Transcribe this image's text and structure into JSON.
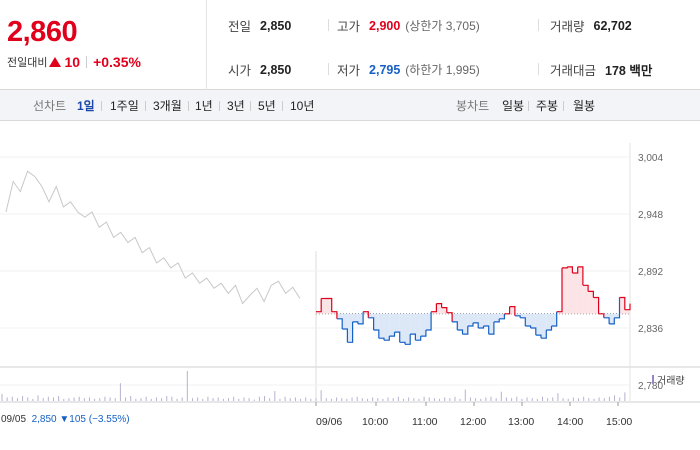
{
  "quote": {
    "price": "2,860",
    "change_label": "전일대비",
    "change_value": "10",
    "change_pct": "+0.35%"
  },
  "info": {
    "prev_close_label": "전일",
    "prev_close": "2,850",
    "open_label": "시가",
    "open": "2,850",
    "high_label": "고가",
    "high": "2,900",
    "upper_limit": "(상한가 3,705)",
    "low_label": "저가",
    "low": "2,795",
    "lower_limit": "(하한가 1,995)",
    "volume_label": "거래량",
    "volume": "62,702",
    "amount_label": "거래대금",
    "amount": "178 백만"
  },
  "tabs": {
    "line_label": "선차트",
    "line_items": [
      "1일",
      "1주일",
      "3개월",
      "1년",
      "3년",
      "5년",
      "10년"
    ],
    "active": "1일",
    "candle_label": "봉차트",
    "candle_items": [
      "일봉",
      "주봉",
      "월봉"
    ]
  },
  "chart_labels": {
    "prev_day": "09/05",
    "prev_price": "2,850",
    "prev_change": "▼105 (−3.55%)",
    "volume_legend": "거래량"
  },
  "colors": {
    "up": "#e0001b",
    "down": "#1560c6",
    "prev_line": "#c8c8c8",
    "fill_down": "#dce8f7",
    "fill_up": "#fbe3e6"
  },
  "chart_data": {
    "type": "line",
    "y_ticks": [
      "3,004",
      "2,948",
      "2,892",
      "2,836",
      "2,780"
    ],
    "y_tick_values": [
      3004,
      2948,
      2892,
      2836,
      2780
    ],
    "ylim": [
      2780,
      3004
    ],
    "baseline": 2850,
    "x_ticks": [
      "09/05",
      "09/06",
      "10:00",
      "11:00",
      "12:00",
      "13:00",
      "14:00",
      "15:00"
    ],
    "series": [
      {
        "values": [
          2950,
          2980,
          2970,
          2990,
          2985,
          2975,
          2960,
          2975,
          2955,
          2960,
          2950,
          2945,
          2950,
          2935,
          2940,
          2925,
          2930,
          2920,
          2925,
          2910,
          2915,
          2900,
          2905,
          2895,
          2900,
          2885,
          2890,
          2880,
          2885,
          2875,
          2880,
          2870,
          2878,
          2860,
          2868,
          2875,
          2862,
          2878,
          2882,
          2870,
          2876,
          2865
        ]
      },
      {
        "values": [
          2852,
          2865,
          2865,
          2852,
          2845,
          2835,
          2822,
          2842,
          2840,
          2852,
          2846,
          2834,
          2826,
          2824,
          2828,
          2832,
          2822,
          2820,
          2830,
          2824,
          2828,
          2834,
          2852,
          2860,
          2856,
          2851,
          2842,
          2834,
          2830,
          2838,
          2841,
          2836,
          2838,
          2830,
          2842,
          2845,
          2850,
          2857,
          2848,
          2846,
          2838,
          2836,
          2829,
          2826,
          2834,
          2838,
          2852,
          2895,
          2896,
          2890,
          2896,
          2878,
          2872,
          2866,
          2850,
          2846,
          2840,
          2846,
          2866,
          2854,
          2860
        ]
      }
    ],
    "volume": [
      1,
      0.5,
      0.6,
      0.4,
      0.7,
      0.5,
      0.3,
      0.8,
      0.4,
      0.6,
      0.5,
      0.7,
      0.3,
      0.4,
      0.5,
      0.6,
      0.4,
      0.5,
      0.3,
      0.4,
      0.6,
      0.5,
      0.4,
      2.5,
      0.5,
      0.7,
      0.3,
      0.4,
      0.6,
      0.3,
      0.5,
      0.4,
      0.7,
      0.6,
      0.3,
      0.5,
      4.2,
      0.4,
      0.5,
      0.3,
      0.6,
      0.4,
      0.5,
      0.3,
      0.4,
      0.6,
      0.3,
      0.5,
      0.4,
      0.2,
      0.6,
      0.7,
      0.4,
      1.4,
      0.3,
      0.6,
      0.4,
      0.5,
      0.3,
      0.5,
      0.3,
      0.4,
      1.5,
      0.4,
      0.3,
      0.5,
      0.4,
      0.3,
      0.5,
      0.6,
      0.4,
      0.3,
      0.5,
      0.4,
      0.3,
      0.5,
      0.4,
      0.6,
      0.3,
      0.5,
      0.4,
      0.3,
      0.6,
      0.5,
      0.4,
      0.3,
      0.5,
      0.4,
      0.6,
      0.3,
      1.6,
      0.5,
      0.4,
      0.3,
      0.5,
      0.6,
      0.4,
      1.3,
      0.5,
      0.4,
      0.6,
      0.3,
      0.5,
      0.4,
      0.3,
      0.6,
      0.4,
      0.5,
      1.1,
      0.4,
      0.3,
      0.5,
      0.4,
      0.6,
      0.4,
      0.3,
      0.5,
      0.4,
      0.6,
      0.8,
      0.5,
      1.2
    ]
  }
}
